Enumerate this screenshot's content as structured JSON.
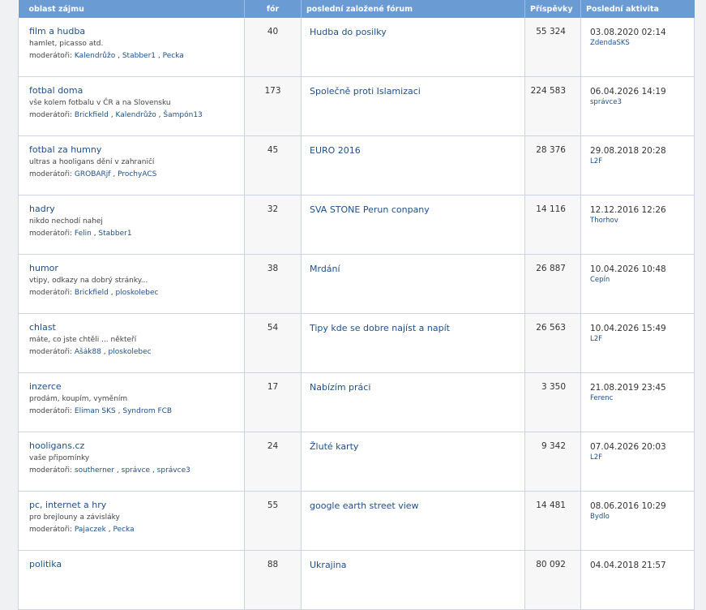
{
  "header": {
    "area": "oblast zájmu",
    "topics": "fór",
    "last_forum": "poslední založené fórum",
    "posts": "Příspěvky",
    "last_activity": "Poslední aktivita"
  },
  "mods_label": "moderátoři:",
  "rows": [
    {
      "name": "film a hudba",
      "desc": "hamlet, picasso atd.",
      "mods": [
        "Kalendrůžo",
        "Stabber1",
        "Pecka"
      ],
      "topics": "40",
      "last_forum": "Hudba do posilky",
      "posts": "55 324",
      "date": "03.08.2020 02:14",
      "user": "ZdendaSKS"
    },
    {
      "name": "fotbal doma",
      "desc": "vše kolem fotbalu v ČR a na Slovensku",
      "mods": [
        "Brickfield",
        "Kalendrůžo",
        "Šampón13"
      ],
      "topics": "173",
      "last_forum": "Společně proti Islamizaci",
      "posts": "224 583",
      "date": "06.04.2026 14:19",
      "user": "správce3"
    },
    {
      "name": "fotbal za humny",
      "desc": "ultras a hooligans dění v zahraničí",
      "mods": [
        "GROBARjf",
        "ProchyACS"
      ],
      "topics": "45",
      "last_forum": "EURO 2016",
      "posts": "28 376",
      "date": "29.08.2018 20:28",
      "user": "L2F"
    },
    {
      "name": "hadry",
      "desc": "nikdo nechodí nahej",
      "mods": [
        "Felin",
        "Stabber1"
      ],
      "topics": "32",
      "last_forum": "SVA STONE Perun conpany",
      "posts": "14 116",
      "date": "12.12.2016 12:26",
      "user": "Thorhov"
    },
    {
      "name": "humor",
      "desc": "vtipy, odkazy na dobrý stránky...",
      "mods": [
        "Brickfield",
        "ploskolebec"
      ],
      "topics": "38",
      "last_forum": "Mrdání",
      "posts": "26 887",
      "date": "10.04.2026 10:48",
      "user": "Cepín"
    },
    {
      "name": "chlast",
      "desc": "máte, co jste chtěli ... někteří",
      "mods": [
        "Ašák88",
        "ploskolebec"
      ],
      "topics": "54",
      "last_forum": "Tipy kde se dobre najíst a napít",
      "posts": "26 563",
      "date": "10.04.2026 15:49",
      "user": "L2F"
    },
    {
      "name": "inzerce",
      "desc": "prodám, koupím, vyměním",
      "mods": [
        "Eliman SKS",
        "Syndrom FCB"
      ],
      "topics": "17",
      "last_forum": "Nabízím práci",
      "posts": "3 350",
      "date": "21.08.2019 23:45",
      "user": "Ferenc"
    },
    {
      "name": "hooligans.cz",
      "desc": "vaše připomínky",
      "mods": [
        "southerner",
        "správce",
        "správce3"
      ],
      "topics": "24",
      "last_forum": "Žluté karty",
      "posts": "9 342",
      "date": "07.04.2026 20:03",
      "user": "L2F"
    },
    {
      "name": "pc, internet a hry",
      "desc": "pro brejlouny a závisláky",
      "mods": [
        "Pajaczek",
        "Pecka"
      ],
      "topics": "55",
      "last_forum": "google earth street view",
      "posts": "14 481",
      "date": "08.06.2016 10:29",
      "user": "Bydlo"
    },
    {
      "name": "politika",
      "desc": "",
      "mods": [],
      "topics": "88",
      "last_forum": "Ukrajina",
      "posts": "80 092",
      "date": "04.04.2018 21:57",
      "user": ""
    }
  ]
}
